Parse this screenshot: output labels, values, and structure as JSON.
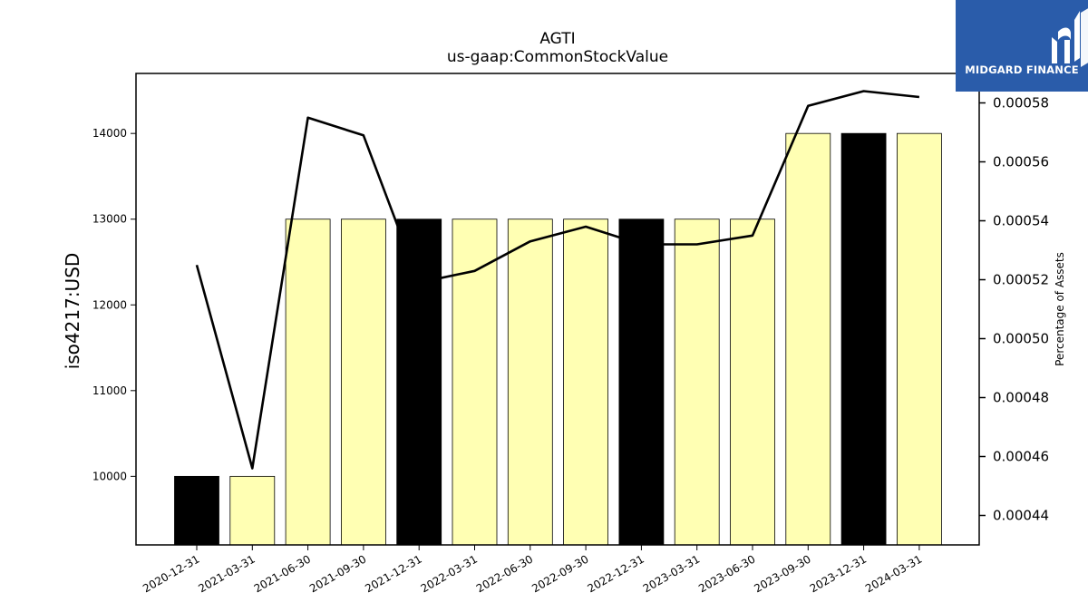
{
  "chart_data": {
    "type": "bar",
    "title": "AGTI",
    "subtitle": "us-gaap:CommonStockValue",
    "ylabel": "iso4217:USD",
    "y2label": "Percentage of Assets",
    "categories": [
      "2020-12-31",
      "2021-03-31",
      "2021-06-30",
      "2021-09-30",
      "2021-12-31",
      "2022-03-31",
      "2022-06-30",
      "2022-09-30",
      "2022-12-31",
      "2023-03-31",
      "2023-06-30",
      "2023-09-30",
      "2023-12-31",
      "2024-03-31"
    ],
    "series": [
      {
        "type": "bar",
        "values": [
          10000,
          10000,
          13000,
          13000,
          13000,
          13000,
          13000,
          13000,
          13000,
          13000,
          13000,
          14000,
          14000,
          14000
        ],
        "fill_colors": [
          "#000000",
          "#ffffb3",
          "#ffffb3",
          "#ffffb3",
          "#000000",
          "#ffffb3",
          "#ffffb3",
          "#ffffb3",
          "#000000",
          "#ffffb3",
          "#ffffb3",
          "#ffffb3",
          "#000000",
          "#ffffb3"
        ]
      },
      {
        "type": "line",
        "axis": "right",
        "values": [
          0.000525,
          0.000456,
          0.000575,
          0.000569,
          0.000519,
          0.000523,
          0.000533,
          0.000538,
          0.000532,
          0.000532,
          0.000535,
          0.000579,
          0.000584,
          0.000582
        ]
      }
    ],
    "ylim": [
      9200,
      14700
    ],
    "y_ticks": [
      10000,
      11000,
      12000,
      13000,
      14000
    ],
    "y2lim": [
      0.00043,
      0.00059
    ],
    "y2_ticks": [
      "0.00044",
      "0.00046",
      "0.00048",
      "0.00050",
      "0.00052",
      "0.00054",
      "0.00056",
      "0.00058"
    ],
    "grid": false
  },
  "logo": {
    "text": "MIDGARD FINANCE",
    "color": "#2a5caa"
  }
}
